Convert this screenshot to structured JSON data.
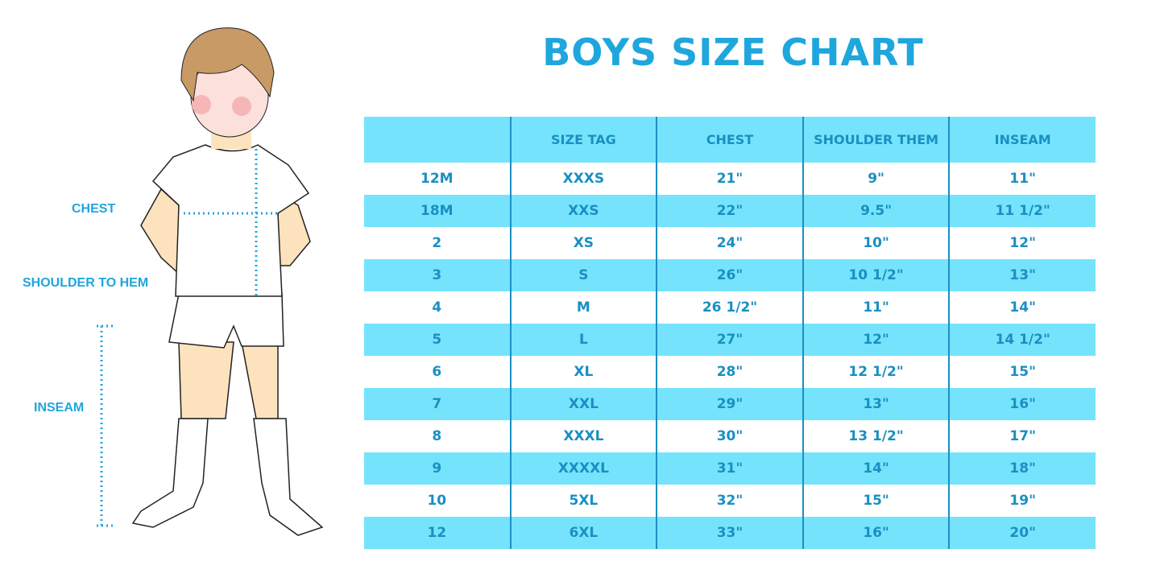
{
  "title": "BOYS SIZE CHART",
  "labels": {
    "chest": "CHEST",
    "shoulder_to_hem": "SHOULDER TO HEM",
    "inseam": "INSEAM"
  },
  "colors": {
    "band": "#76e3fc",
    "text": "#1a8fc2",
    "title": "#1fa6dd"
  },
  "table": {
    "headers": [
      "",
      "SIZE TAG",
      "CHEST",
      "SHOULDER THEM",
      "INSEAM"
    ],
    "rows": [
      [
        "12M",
        "XXXS",
        "21\"",
        "9\"",
        "11\""
      ],
      [
        "18M",
        "XXS",
        "22\"",
        "9.5\"",
        "11 1/2\""
      ],
      [
        "2",
        "XS",
        "24\"",
        "10\"",
        "12\""
      ],
      [
        "3",
        "S",
        "26\"",
        "10 1/2\"",
        "13\""
      ],
      [
        "4",
        "M",
        "26 1/2\"",
        "11\"",
        "14\""
      ],
      [
        "5",
        "L",
        "27\"",
        "12\"",
        "14 1/2\""
      ],
      [
        "6",
        "XL",
        "28\"",
        "12 1/2\"",
        "15\""
      ],
      [
        "7",
        "XXL",
        "29\"",
        "13\"",
        "16\""
      ],
      [
        "8",
        "XXXL",
        "30\"",
        "13 1/2\"",
        "17\""
      ],
      [
        "9",
        "XXXXL",
        "31\"",
        "14\"",
        "18\""
      ],
      [
        "10",
        "5XL",
        "32\"",
        "15\"",
        "19\""
      ],
      [
        "12",
        "6XL",
        "33\"",
        "16\"",
        "20\""
      ]
    ]
  }
}
